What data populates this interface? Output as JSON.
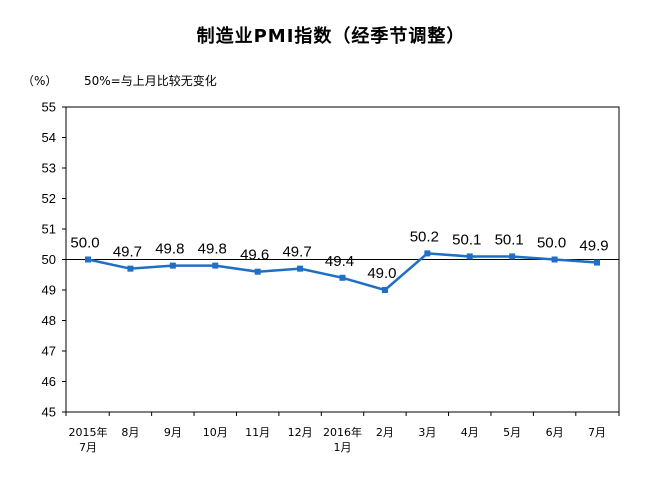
{
  "chart_data": {
    "type": "line",
    "title": "制造业PMI指数（经季节调整）",
    "ylabel": "（%）",
    "annotation": "50%=与上月比较无变化",
    "ylim": [
      45,
      55
    ],
    "yticks": [
      "45",
      "46",
      "47",
      "48",
      "49",
      "50",
      "51",
      "52",
      "53",
      "54",
      "55"
    ],
    "reference_line": 50,
    "categories": [
      [
        "2015年",
        "7月"
      ],
      [
        "8月"
      ],
      [
        "9月"
      ],
      [
        "10月"
      ],
      [
        "11月"
      ],
      [
        "12月"
      ],
      [
        "2016年",
        "1月"
      ],
      [
        "2月"
      ],
      [
        "3月"
      ],
      [
        "4月"
      ],
      [
        "5月"
      ],
      [
        "6月"
      ],
      [
        "7月"
      ]
    ],
    "series": [
      {
        "values": [
          50.0,
          49.7,
          49.8,
          49.8,
          49.6,
          49.7,
          49.4,
          49.0,
          50.2,
          50.1,
          50.1,
          50.0,
          49.9
        ],
        "labels": [
          "50.0",
          "49.7",
          "49.8",
          "49.8",
          "49.6",
          "49.7",
          "49.4",
          "49.0",
          "50.2",
          "50.1",
          "50.1",
          "50.0",
          "49.9"
        ],
        "color": "#1f6fc5",
        "marker": "square"
      }
    ],
    "grid": false
  }
}
